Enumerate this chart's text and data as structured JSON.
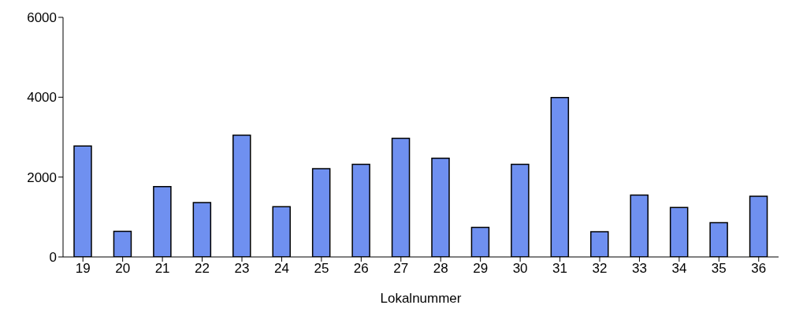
{
  "chart_data": {
    "type": "bar",
    "xlabel": "Lokalnummer",
    "categories": [
      "19",
      "20",
      "21",
      "22",
      "23",
      "24",
      "25",
      "26",
      "27",
      "28",
      "29",
      "30",
      "31",
      "32",
      "33",
      "34",
      "35",
      "36"
    ],
    "values": [
      2780,
      640,
      1760,
      1360,
      3050,
      1260,
      2210,
      2320,
      2970,
      2470,
      740,
      2320,
      3990,
      630,
      1550,
      1240,
      860,
      1520
    ],
    "color": "#6f90f0",
    "ylim": [
      0,
      6000
    ],
    "yticks": [
      0,
      2000,
      4000,
      6000
    ],
    "grid": false,
    "legend": false
  }
}
